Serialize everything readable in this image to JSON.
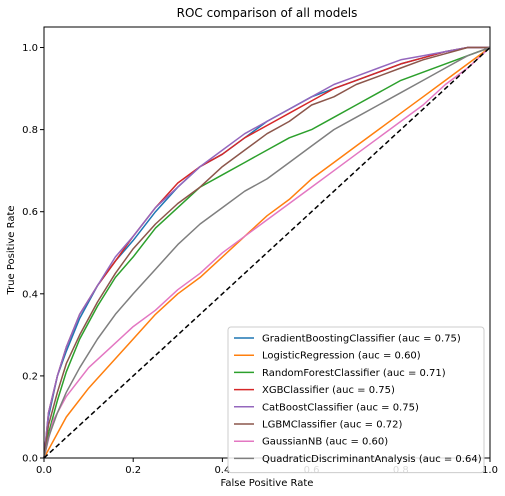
{
  "chart_data": {
    "type": "line",
    "title": "ROC comparison of all models",
    "xlabel": "False Positive Rate",
    "ylabel": "True Positive Rate",
    "xlim": [
      0,
      1
    ],
    "ylim": [
      0,
      1.05
    ],
    "xticks": [
      "0.0",
      "0.2",
      "0.4",
      "0.6",
      "0.8",
      "1.0"
    ],
    "yticks": [
      "0.0",
      "0.2",
      "0.4",
      "0.6",
      "0.8",
      "1.0"
    ],
    "grid": false,
    "legend_position": "lower-right",
    "reference_line": {
      "style": "dashed",
      "color": "#000000",
      "points": [
        [
          0,
          0
        ],
        [
          1,
          1
        ]
      ]
    },
    "series": [
      {
        "name": "GradientBoostingClassifier (auc = 0.75)",
        "color": "#1f77b4",
        "points": [
          [
            0,
            0
          ],
          [
            0.01,
            0.1
          ],
          [
            0.03,
            0.2
          ],
          [
            0.05,
            0.26
          ],
          [
            0.08,
            0.34
          ],
          [
            0.12,
            0.42
          ],
          [
            0.16,
            0.48
          ],
          [
            0.2,
            0.53
          ],
          [
            0.25,
            0.6
          ],
          [
            0.3,
            0.66
          ],
          [
            0.35,
            0.71
          ],
          [
            0.4,
            0.74
          ],
          [
            0.45,
            0.78
          ],
          [
            0.5,
            0.82
          ],
          [
            0.55,
            0.85
          ],
          [
            0.6,
            0.88
          ],
          [
            0.65,
            0.9
          ],
          [
            0.7,
            0.92
          ],
          [
            0.75,
            0.94
          ],
          [
            0.8,
            0.96
          ],
          [
            0.85,
            0.975
          ],
          [
            0.9,
            0.99
          ],
          [
            0.95,
            1.0
          ],
          [
            1,
            1
          ]
        ]
      },
      {
        "name": "LogisticRegression (auc = 0.60)",
        "color": "#ff7f0e",
        "points": [
          [
            0,
            0
          ],
          [
            0.02,
            0.04
          ],
          [
            0.05,
            0.1
          ],
          [
            0.1,
            0.17
          ],
          [
            0.15,
            0.23
          ],
          [
            0.2,
            0.29
          ],
          [
            0.25,
            0.35
          ],
          [
            0.3,
            0.4
          ],
          [
            0.35,
            0.44
          ],
          [
            0.4,
            0.49
          ],
          [
            0.45,
            0.54
          ],
          [
            0.5,
            0.59
          ],
          [
            0.55,
            0.63
          ],
          [
            0.6,
            0.68
          ],
          [
            0.65,
            0.72
          ],
          [
            0.7,
            0.76
          ],
          [
            0.75,
            0.8
          ],
          [
            0.8,
            0.84
          ],
          [
            0.85,
            0.88
          ],
          [
            0.9,
            0.92
          ],
          [
            0.95,
            0.96
          ],
          [
            1,
            1
          ]
        ]
      },
      {
        "name": "RandomForestClassifier (auc = 0.71)",
        "color": "#2ca02c",
        "points": [
          [
            0,
            0
          ],
          [
            0.01,
            0.06
          ],
          [
            0.03,
            0.14
          ],
          [
            0.05,
            0.21
          ],
          [
            0.08,
            0.29
          ],
          [
            0.12,
            0.37
          ],
          [
            0.16,
            0.44
          ],
          [
            0.2,
            0.49
          ],
          [
            0.25,
            0.56
          ],
          [
            0.3,
            0.61
          ],
          [
            0.35,
            0.66
          ],
          [
            0.4,
            0.69
          ],
          [
            0.45,
            0.72
          ],
          [
            0.5,
            0.75
          ],
          [
            0.55,
            0.78
          ],
          [
            0.6,
            0.8
          ],
          [
            0.65,
            0.83
          ],
          [
            0.7,
            0.86
          ],
          [
            0.75,
            0.89
          ],
          [
            0.8,
            0.92
          ],
          [
            0.85,
            0.94
          ],
          [
            0.9,
            0.96
          ],
          [
            0.95,
            0.98
          ],
          [
            1,
            1
          ]
        ]
      },
      {
        "name": "XGBClassifier (auc = 0.75)",
        "color": "#d62728",
        "points": [
          [
            0,
            0
          ],
          [
            0.01,
            0.11
          ],
          [
            0.03,
            0.2
          ],
          [
            0.05,
            0.27
          ],
          [
            0.08,
            0.35
          ],
          [
            0.12,
            0.42
          ],
          [
            0.16,
            0.48
          ],
          [
            0.2,
            0.54
          ],
          [
            0.25,
            0.61
          ],
          [
            0.3,
            0.67
          ],
          [
            0.35,
            0.71
          ],
          [
            0.4,
            0.74
          ],
          [
            0.45,
            0.78
          ],
          [
            0.5,
            0.81
          ],
          [
            0.55,
            0.84
          ],
          [
            0.6,
            0.87
          ],
          [
            0.65,
            0.9
          ],
          [
            0.7,
            0.92
          ],
          [
            0.75,
            0.94
          ],
          [
            0.8,
            0.96
          ],
          [
            0.85,
            0.975
          ],
          [
            0.9,
            0.99
          ],
          [
            0.95,
            1.0
          ],
          [
            1,
            1
          ]
        ]
      },
      {
        "name": "CatBoostClassifier (auc = 0.75)",
        "color": "#9467bd",
        "points": [
          [
            0,
            0
          ],
          [
            0.01,
            0.11
          ],
          [
            0.03,
            0.2
          ],
          [
            0.05,
            0.27
          ],
          [
            0.08,
            0.35
          ],
          [
            0.12,
            0.42
          ],
          [
            0.16,
            0.49
          ],
          [
            0.2,
            0.54
          ],
          [
            0.25,
            0.61
          ],
          [
            0.3,
            0.66
          ],
          [
            0.35,
            0.71
          ],
          [
            0.4,
            0.75
          ],
          [
            0.45,
            0.79
          ],
          [
            0.5,
            0.82
          ],
          [
            0.55,
            0.85
          ],
          [
            0.6,
            0.88
          ],
          [
            0.65,
            0.91
          ],
          [
            0.7,
            0.93
          ],
          [
            0.75,
            0.95
          ],
          [
            0.8,
            0.97
          ],
          [
            0.85,
            0.98
          ],
          [
            0.9,
            0.99
          ],
          [
            0.95,
            1.0
          ],
          [
            1,
            1
          ]
        ]
      },
      {
        "name": "LGBMClassifier (auc = 0.72)",
        "color": "#8c564b",
        "points": [
          [
            0,
            0
          ],
          [
            0.01,
            0.08
          ],
          [
            0.03,
            0.16
          ],
          [
            0.05,
            0.23
          ],
          [
            0.08,
            0.3
          ],
          [
            0.12,
            0.38
          ],
          [
            0.16,
            0.45
          ],
          [
            0.2,
            0.51
          ],
          [
            0.25,
            0.57
          ],
          [
            0.3,
            0.62
          ],
          [
            0.35,
            0.66
          ],
          [
            0.4,
            0.71
          ],
          [
            0.45,
            0.75
          ],
          [
            0.5,
            0.79
          ],
          [
            0.55,
            0.82
          ],
          [
            0.6,
            0.86
          ],
          [
            0.65,
            0.88
          ],
          [
            0.7,
            0.91
          ],
          [
            0.75,
            0.93
          ],
          [
            0.8,
            0.95
          ],
          [
            0.85,
            0.97
          ],
          [
            0.9,
            0.985
          ],
          [
            0.95,
            1.0
          ],
          [
            1,
            1
          ]
        ]
      },
      {
        "name": "GaussianNB (auc = 0.60)",
        "color": "#e377c2",
        "points": [
          [
            0,
            0
          ],
          [
            0.02,
            0.09
          ],
          [
            0.05,
            0.15
          ],
          [
            0.1,
            0.22
          ],
          [
            0.15,
            0.27
          ],
          [
            0.2,
            0.32
          ],
          [
            0.25,
            0.36
          ],
          [
            0.3,
            0.41
          ],
          [
            0.35,
            0.45
          ],
          [
            0.4,
            0.5
          ],
          [
            0.45,
            0.54
          ],
          [
            0.5,
            0.58
          ],
          [
            0.55,
            0.62
          ],
          [
            0.6,
            0.66
          ],
          [
            0.65,
            0.7
          ],
          [
            0.7,
            0.74
          ],
          [
            0.75,
            0.78
          ],
          [
            0.8,
            0.82
          ],
          [
            0.85,
            0.86
          ],
          [
            0.9,
            0.91
          ],
          [
            0.95,
            0.95
          ],
          [
            1,
            1
          ]
        ]
      },
      {
        "name": "QuadraticDiscriminantAnalysis (auc = 0.64)",
        "color": "#7f7f7f",
        "points": [
          [
            0,
            0
          ],
          [
            0.01,
            0.05
          ],
          [
            0.03,
            0.11
          ],
          [
            0.05,
            0.16
          ],
          [
            0.08,
            0.22
          ],
          [
            0.12,
            0.29
          ],
          [
            0.16,
            0.35
          ],
          [
            0.2,
            0.4
          ],
          [
            0.25,
            0.46
          ],
          [
            0.3,
            0.52
          ],
          [
            0.35,
            0.57
          ],
          [
            0.4,
            0.61
          ],
          [
            0.45,
            0.65
          ],
          [
            0.5,
            0.68
          ],
          [
            0.55,
            0.72
          ],
          [
            0.6,
            0.76
          ],
          [
            0.65,
            0.8
          ],
          [
            0.7,
            0.83
          ],
          [
            0.75,
            0.86
          ],
          [
            0.8,
            0.89
          ],
          [
            0.85,
            0.92
          ],
          [
            0.9,
            0.95
          ],
          [
            0.95,
            0.98
          ],
          [
            1,
            1
          ]
        ]
      }
    ]
  }
}
